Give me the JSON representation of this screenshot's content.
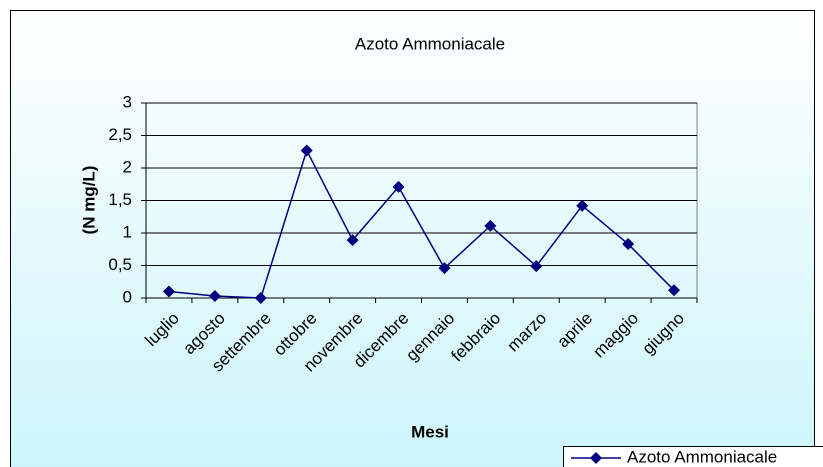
{
  "chart_data": {
    "type": "line",
    "title": "Azoto Ammoniacale",
    "x_label": "Mesi",
    "y_label": "(N mg/L)",
    "categories": [
      "luglio",
      "agosto",
      "settembre",
      "ottobre",
      "novembre",
      "dicembre",
      "gennaio",
      "febbraio",
      "marzo",
      "aprile",
      "maggio",
      "giugno"
    ],
    "series": [
      {
        "name": "Azoto Ammoniacale",
        "color": "#000080",
        "values": [
          0.1,
          0.03,
          0,
          2.27,
          0.89,
          1.71,
          0.46,
          1.11,
          0.49,
          1.42,
          0.83,
          0.12
        ]
      }
    ],
    "ylim": [
      0,
      3
    ],
    "yticks": [
      0,
      {
        "value": 0.5,
        "label": "0,5"
      },
      1,
      {
        "value": 1.5,
        "label": "1,5"
      },
      2,
      {
        "value": 2.5,
        "label": "2,5"
      },
      3
    ],
    "grid": true,
    "legend": "bottom-right"
  }
}
